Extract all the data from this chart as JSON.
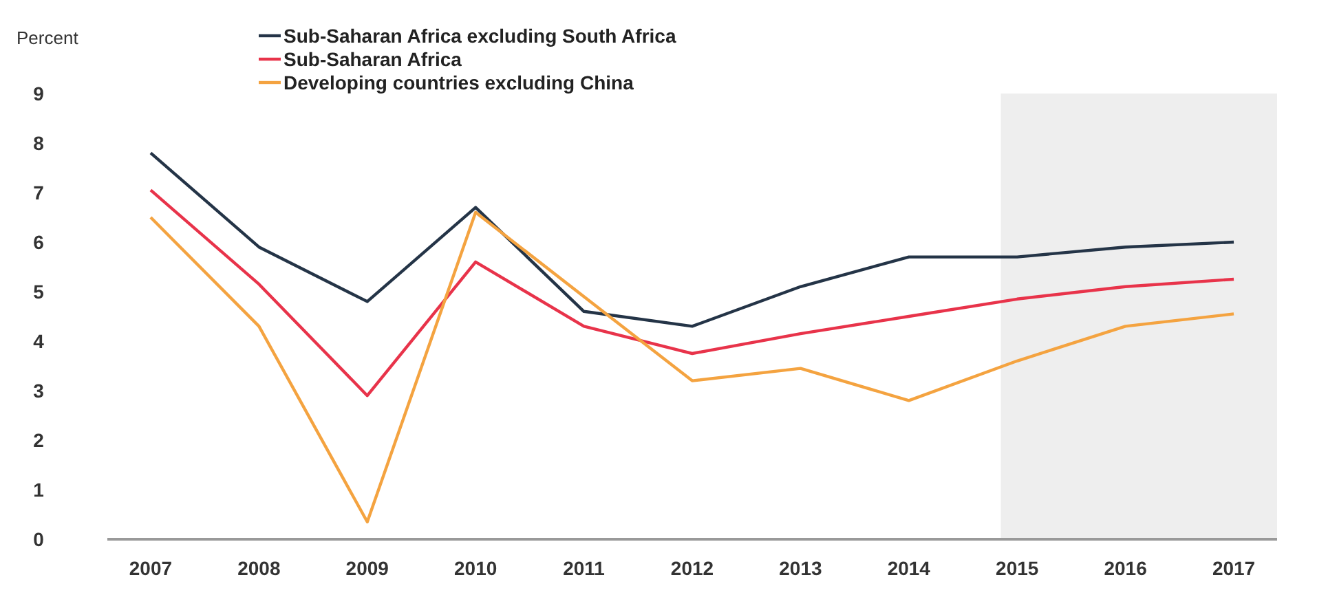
{
  "chart_data": {
    "type": "line",
    "ylabel": "Percent",
    "x": [
      2007,
      2008,
      2009,
      2010,
      2011,
      2012,
      2013,
      2014,
      2015,
      2016,
      2017
    ],
    "xlim": [
      2006.6,
      2017.4
    ],
    "xticks": [
      2007,
      2008,
      2009,
      2010,
      2011,
      2012,
      2013,
      2014,
      2015,
      2016,
      2017
    ],
    "ylim": [
      0,
      9
    ],
    "yticks": [
      0,
      1,
      2,
      3,
      4,
      5,
      6,
      7,
      8,
      9
    ],
    "series": [
      {
        "name": "Sub-Saharan Africa excluding South Africa",
        "color": "#243447",
        "values": [
          7.8,
          5.9,
          4.8,
          6.7,
          4.6,
          4.3,
          5.1,
          5.7,
          5.7,
          5.9,
          6.0
        ]
      },
      {
        "name": "Sub-Saharan Africa",
        "color": "#e8334a",
        "values": [
          7.05,
          5.15,
          2.9,
          5.6,
          4.3,
          3.75,
          4.15,
          4.5,
          4.85,
          5.1,
          5.25
        ]
      },
      {
        "name": "Developing countries excluding China",
        "color": "#f4a340",
        "values": [
          6.5,
          4.3,
          0.35,
          6.6,
          4.9,
          3.2,
          3.45,
          2.8,
          3.6,
          4.3,
          4.55
        ]
      }
    ],
    "bands": [
      {
        "axis": "x",
        "from": 2014.85,
        "to": 2017.4,
        "color": "#eeeeee"
      }
    ],
    "legend": "top",
    "grid": false,
    "line_style": "solid"
  }
}
